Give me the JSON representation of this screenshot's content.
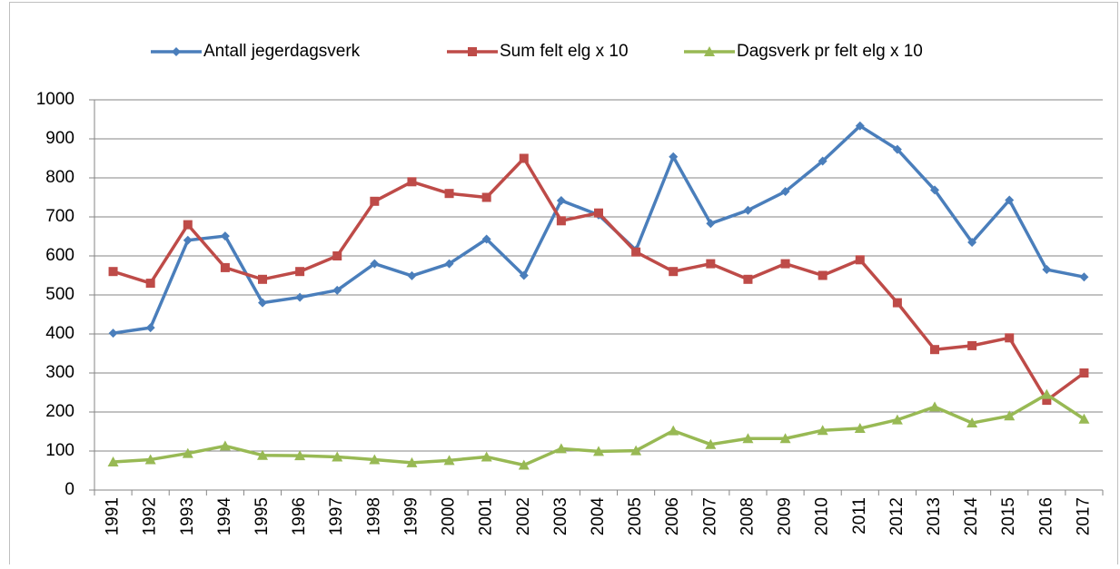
{
  "chart_data": {
    "type": "line",
    "categories": [
      "1991",
      "1992",
      "1993",
      "1994",
      "1995",
      "1996",
      "1997",
      "1998",
      "1999",
      "2000",
      "2001",
      "2002",
      "2003",
      "2004",
      "2005",
      "2006",
      "2007",
      "2008",
      "2009",
      "2010",
      "2011",
      "2012",
      "2013",
      "2014",
      "2015",
      "2016",
      "2017"
    ],
    "series": [
      {
        "name": "Antall jegerdagsverk",
        "color": "#4a7ebb",
        "marker": "diamond",
        "values": [
          402,
          416,
          640,
          651,
          480,
          494,
          512,
          580,
          549,
          580,
          643,
          550,
          742,
          705,
          615,
          854,
          683,
          717,
          765,
          843,
          933,
          873,
          769,
          635,
          743,
          565,
          546
        ]
      },
      {
        "name": "Sum felt elg x 10",
        "color": "#be4b48",
        "marker": "square",
        "values": [
          560,
          530,
          680,
          570,
          540,
          560,
          600,
          740,
          790,
          760,
          750,
          850,
          690,
          710,
          610,
          560,
          580,
          540,
          580,
          550,
          590,
          480,
          360,
          370,
          390,
          230,
          300
        ]
      },
      {
        "name": "Dagsverk pr felt elg x 10",
        "color": "#98b954",
        "marker": "triangle",
        "values": [
          72,
          78,
          94,
          113,
          89,
          88,
          85,
          78,
          70,
          76,
          85,
          64,
          106,
          99,
          101,
          152,
          117,
          132,
          132,
          153,
          158,
          180,
          213,
          172,
          190,
          245,
          182
        ]
      }
    ],
    "ylim": [
      0,
      1000
    ],
    "yticks": [
      0,
      100,
      200,
      300,
      400,
      500,
      600,
      700,
      800,
      900,
      1000
    ],
    "grid": true,
    "legend": "top"
  }
}
